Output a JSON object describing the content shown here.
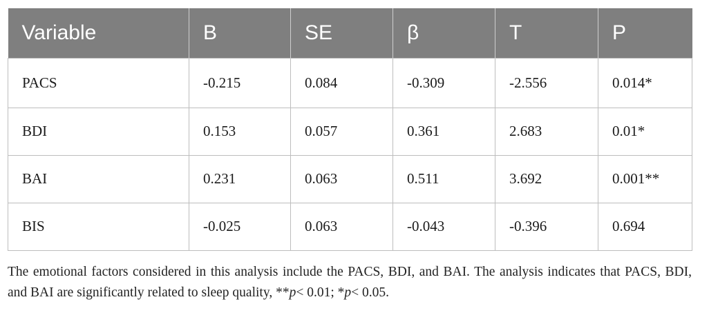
{
  "table": {
    "headers": [
      "Variable",
      "B",
      "SE",
      "β",
      "T",
      "P"
    ],
    "rows": [
      [
        "PACS",
        "-0.215",
        "0.084",
        "-0.309",
        "-2.556",
        "0.014*"
      ],
      [
        "BDI",
        "0.153",
        "0.057",
        "0.361",
        "2.683",
        "0.01*"
      ],
      [
        "BAI",
        "0.231",
        "0.063",
        "0.511",
        "3.692",
        "0.001**"
      ],
      [
        "BIS",
        "-0.025",
        "0.063",
        "-0.043",
        "-0.396",
        "0.694"
      ]
    ]
  },
  "footnote": {
    "text_main": "The emotional factors considered in this analysis include the PACS, BDI, and BAI. The analysis indicates that PACS, BDI, and BAI are significantly related to sleep quality, **",
    "p1": "p",
    "text_mid": "< 0.01; *",
    "p2": "p",
    "text_end": "< 0.05."
  },
  "colors": {
    "header_bg": "#7f7f7f",
    "header_text": "#ffffff",
    "border": "#bdbdbd"
  }
}
